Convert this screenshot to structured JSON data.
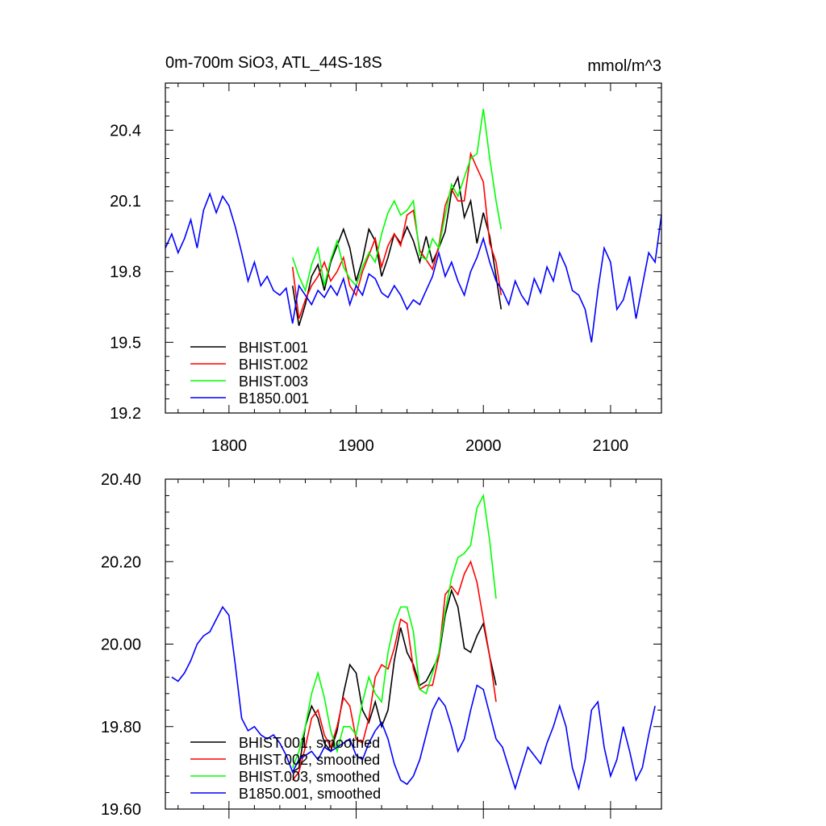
{
  "colors": {
    "BHIST.001": "#000000",
    "BHIST.002": "#ff0000",
    "BHIST.003": "#00ff00",
    "B1850.001": "#0000ff"
  },
  "chart_data": [
    {
      "type": "line",
      "title": "0m-700m SiO3, ATL_44S-18S",
      "units": "mmol/m^3",
      "xlim": [
        1750,
        2140
      ],
      "ylim": [
        19.2,
        20.6
      ],
      "x_ticks": [
        1800,
        1900,
        2000,
        2100
      ],
      "x_tick_labels": [
        "1800",
        "1900",
        "2000",
        "2100"
      ],
      "y_ticks": [
        19.2,
        19.5,
        19.8,
        20.1,
        20.4
      ],
      "y_tick_labels": [
        "19.2",
        "19.5",
        "19.8",
        "20.1",
        "20.4"
      ],
      "legend": "bottom-left",
      "series": [
        {
          "name": "BHIST.001",
          "color": "#000000",
          "x": [
            1850,
            1855,
            1860,
            1865,
            1870,
            1875,
            1880,
            1885,
            1890,
            1895,
            1900,
            1905,
            1910,
            1915,
            1920,
            1925,
            1930,
            1935,
            1940,
            1945,
            1950,
            1955,
            1960,
            1965,
            1970,
            1975,
            1980,
            1985,
            1990,
            1995,
            2000,
            2005,
            2010,
            2014
          ],
          "y": [
            19.74,
            19.57,
            19.66,
            19.78,
            19.83,
            19.72,
            19.84,
            19.91,
            19.98,
            19.9,
            19.76,
            19.85,
            19.98,
            19.93,
            19.78,
            19.86,
            19.96,
            19.92,
            19.99,
            19.93,
            19.84,
            19.95,
            19.84,
            19.9,
            19.97,
            20.14,
            20.2,
            20.03,
            20.1,
            19.92,
            20.05,
            19.95,
            19.78,
            19.64
          ]
        },
        {
          "name": "BHIST.002",
          "color": "#ff0000",
          "x": [
            1850,
            1855,
            1860,
            1865,
            1870,
            1875,
            1880,
            1885,
            1890,
            1895,
            1900,
            1905,
            1910,
            1915,
            1920,
            1925,
            1930,
            1935,
            1940,
            1945,
            1950,
            1955,
            1960,
            1965,
            1970,
            1975,
            1980,
            1985,
            1990,
            1995,
            2000,
            2005,
            2010,
            2014
          ],
          "y": [
            19.82,
            19.6,
            19.68,
            19.74,
            19.78,
            19.84,
            19.76,
            19.8,
            19.86,
            19.74,
            19.7,
            19.8,
            19.87,
            19.94,
            19.82,
            19.91,
            19.96,
            19.91,
            20.04,
            20.06,
            19.89,
            19.85,
            19.81,
            19.91,
            20.08,
            20.15,
            20.1,
            20.1,
            20.3,
            20.24,
            20.18,
            19.92,
            19.84,
            19.7
          ]
        },
        {
          "name": "BHIST.003",
          "color": "#00ff00",
          "x": [
            1850,
            1855,
            1860,
            1865,
            1870,
            1875,
            1880,
            1885,
            1890,
            1895,
            1900,
            1905,
            1910,
            1915,
            1920,
            1925,
            1930,
            1935,
            1940,
            1945,
            1950,
            1955,
            1960,
            1965,
            1970,
            1975,
            1980,
            1985,
            1990,
            1995,
            2000,
            2005,
            2010,
            2014
          ],
          "y": [
            19.86,
            19.78,
            19.72,
            19.83,
            19.9,
            19.74,
            19.85,
            19.93,
            19.82,
            19.77,
            19.74,
            19.82,
            19.88,
            19.84,
            19.96,
            20.05,
            20.1,
            20.04,
            20.06,
            20.1,
            19.87,
            19.85,
            19.94,
            19.9,
            20.04,
            20.17,
            20.12,
            20.2,
            20.28,
            20.3,
            20.49,
            20.28,
            20.1,
            19.98
          ]
        },
        {
          "name": "B1850.001",
          "color": "#0000ff",
          "x": [
            1750,
            1755,
            1760,
            1765,
            1770,
            1775,
            1780,
            1785,
            1790,
            1795,
            1800,
            1805,
            1810,
            1815,
            1820,
            1825,
            1830,
            1835,
            1840,
            1845,
            1850,
            1855,
            1860,
            1865,
            1870,
            1875,
            1880,
            1885,
            1890,
            1895,
            1900,
            1905,
            1910,
            1915,
            1920,
            1925,
            1930,
            1935,
            1940,
            1945,
            1950,
            1955,
            1960,
            1965,
            1970,
            1975,
            1980,
            1985,
            1990,
            1995,
            2000,
            2005,
            2010,
            2015,
            2020,
            2025,
            2030,
            2035,
            2040,
            2045,
            2050,
            2055,
            2060,
            2065,
            2070,
            2075,
            2080,
            2085,
            2090,
            2095,
            2100,
            2105,
            2110,
            2115,
            2120,
            2125,
            2130,
            2135,
            2140
          ],
          "y": [
            19.9,
            19.96,
            19.88,
            19.94,
            20.02,
            19.9,
            20.06,
            20.13,
            20.05,
            20.12,
            20.08,
            19.99,
            19.88,
            19.76,
            19.84,
            19.74,
            19.78,
            19.72,
            19.7,
            19.73,
            19.58,
            19.74,
            19.7,
            19.66,
            19.72,
            19.69,
            19.74,
            19.7,
            19.77,
            19.66,
            19.74,
            19.7,
            19.79,
            19.77,
            19.71,
            19.69,
            19.74,
            19.7,
            19.64,
            19.68,
            19.66,
            19.72,
            19.78,
            19.88,
            19.78,
            19.84,
            19.76,
            19.7,
            19.8,
            19.86,
            19.94,
            19.84,
            19.76,
            19.72,
            19.66,
            19.76,
            19.7,
            19.66,
            19.77,
            19.71,
            19.82,
            19.76,
            19.88,
            19.82,
            19.72,
            19.7,
            19.64,
            19.5,
            19.72,
            19.9,
            19.84,
            19.64,
            19.68,
            19.78,
            19.6,
            19.74,
            19.88,
            19.84,
            20.04
          ]
        }
      ]
    },
    {
      "type": "line",
      "xlim": [
        1750,
        2140
      ],
      "ylim": [
        19.6,
        20.4
      ],
      "x_ticks": [
        1800,
        1900,
        2000,
        2100
      ],
      "y_ticks": [
        19.6,
        19.8,
        20.0,
        20.2,
        20.4
      ],
      "y_tick_labels": [
        "19.60",
        "19.80",
        "20.00",
        "20.20",
        "20.40"
      ],
      "legend": "bottom-left",
      "series": [
        {
          "name": "BHIST.001, smoothed",
          "color": "#000000",
          "x": [
            1850,
            1855,
            1860,
            1865,
            1870,
            1875,
            1880,
            1885,
            1890,
            1895,
            1900,
            1905,
            1910,
            1915,
            1920,
            1925,
            1930,
            1935,
            1940,
            1945,
            1950,
            1955,
            1960,
            1965,
            1970,
            1975,
            1980,
            1985,
            1990,
            1995,
            2000,
            2005,
            2010
          ],
          "y": [
            19.69,
            19.7,
            19.8,
            19.85,
            19.82,
            19.76,
            19.74,
            19.79,
            19.88,
            19.95,
            19.93,
            19.84,
            19.81,
            19.86,
            19.8,
            19.84,
            19.96,
            20.04,
            19.98,
            19.95,
            19.9,
            19.91,
            19.94,
            19.97,
            20.07,
            20.13,
            20.09,
            19.99,
            19.98,
            20.02,
            20.05,
            19.97,
            19.9
          ]
        },
        {
          "name": "BHIST.002, smoothed",
          "color": "#ff0000",
          "x": [
            1850,
            1855,
            1860,
            1865,
            1870,
            1875,
            1880,
            1885,
            1890,
            1895,
            1900,
            1905,
            1910,
            1915,
            1920,
            1925,
            1930,
            1935,
            1940,
            1945,
            1950,
            1955,
            1960,
            1965,
            1970,
            1975,
            1980,
            1985,
            1990,
            1995,
            2000,
            2005,
            2010
          ],
          "y": [
            19.67,
            19.69,
            19.75,
            19.82,
            19.84,
            19.78,
            19.75,
            19.8,
            19.87,
            19.85,
            19.77,
            19.76,
            19.82,
            19.92,
            19.95,
            19.94,
            19.99,
            20.06,
            20.05,
            19.94,
            19.89,
            19.9,
            19.9,
            19.97,
            20.12,
            20.14,
            20.12,
            20.17,
            20.2,
            20.15,
            20.06,
            19.97,
            19.86
          ]
        },
        {
          "name": "BHIST.003, smoothed",
          "color": "#00ff00",
          "x": [
            1850,
            1855,
            1860,
            1865,
            1870,
            1875,
            1880,
            1885,
            1890,
            1895,
            1900,
            1905,
            1910,
            1915,
            1920,
            1925,
            1930,
            1935,
            1940,
            1945,
            1950,
            1955,
            1960,
            1965,
            1970,
            1975,
            1980,
            1985,
            1990,
            1995,
            2000,
            2005,
            2010
          ],
          "y": [
            19.7,
            19.74,
            19.8,
            19.88,
            19.93,
            19.87,
            19.79,
            19.74,
            19.8,
            19.8,
            19.78,
            19.86,
            19.92,
            19.88,
            19.86,
            19.98,
            20.05,
            20.09,
            20.09,
            20.03,
            19.89,
            19.88,
            19.93,
            19.98,
            20.08,
            20.16,
            20.21,
            20.22,
            20.24,
            20.33,
            20.36,
            20.25,
            20.11
          ]
        },
        {
          "name": "B1850.001, smoothed",
          "color": "#0000ff",
          "x": [
            1755,
            1760,
            1765,
            1770,
            1775,
            1780,
            1785,
            1790,
            1795,
            1800,
            1805,
            1810,
            1815,
            1820,
            1825,
            1830,
            1835,
            1840,
            1845,
            1850,
            1855,
            1860,
            1865,
            1870,
            1875,
            1880,
            1885,
            1890,
            1895,
            1900,
            1905,
            1910,
            1915,
            1920,
            1925,
            1930,
            1935,
            1940,
            1945,
            1950,
            1955,
            1960,
            1965,
            1970,
            1975,
            1980,
            1985,
            1990,
            1995,
            2000,
            2005,
            2010,
            2015,
            2020,
            2025,
            2030,
            2035,
            2040,
            2045,
            2050,
            2055,
            2060,
            2065,
            2070,
            2075,
            2080,
            2085,
            2090,
            2095,
            2100,
            2105,
            2110,
            2115,
            2120,
            2125,
            2130,
            2135
          ],
          "y": [
            19.92,
            19.91,
            19.93,
            19.96,
            20.0,
            20.02,
            20.03,
            20.06,
            20.09,
            20.07,
            19.95,
            19.82,
            19.79,
            19.8,
            19.78,
            19.77,
            19.78,
            19.76,
            19.73,
            19.69,
            19.72,
            19.73,
            19.74,
            19.72,
            19.75,
            19.74,
            19.75,
            19.76,
            19.77,
            19.73,
            19.72,
            19.76,
            19.79,
            19.81,
            19.77,
            19.71,
            19.67,
            19.66,
            19.68,
            19.72,
            19.78,
            19.84,
            19.87,
            19.85,
            19.8,
            19.74,
            19.77,
            19.84,
            19.9,
            19.89,
            19.83,
            19.77,
            19.75,
            19.7,
            19.65,
            19.7,
            19.75,
            19.73,
            19.71,
            19.76,
            19.8,
            19.85,
            19.8,
            19.7,
            19.65,
            19.72,
            19.84,
            19.86,
            19.75,
            19.68,
            19.72,
            19.8,
            19.74,
            19.67,
            19.7,
            19.78,
            19.85
          ]
        }
      ]
    }
  ]
}
